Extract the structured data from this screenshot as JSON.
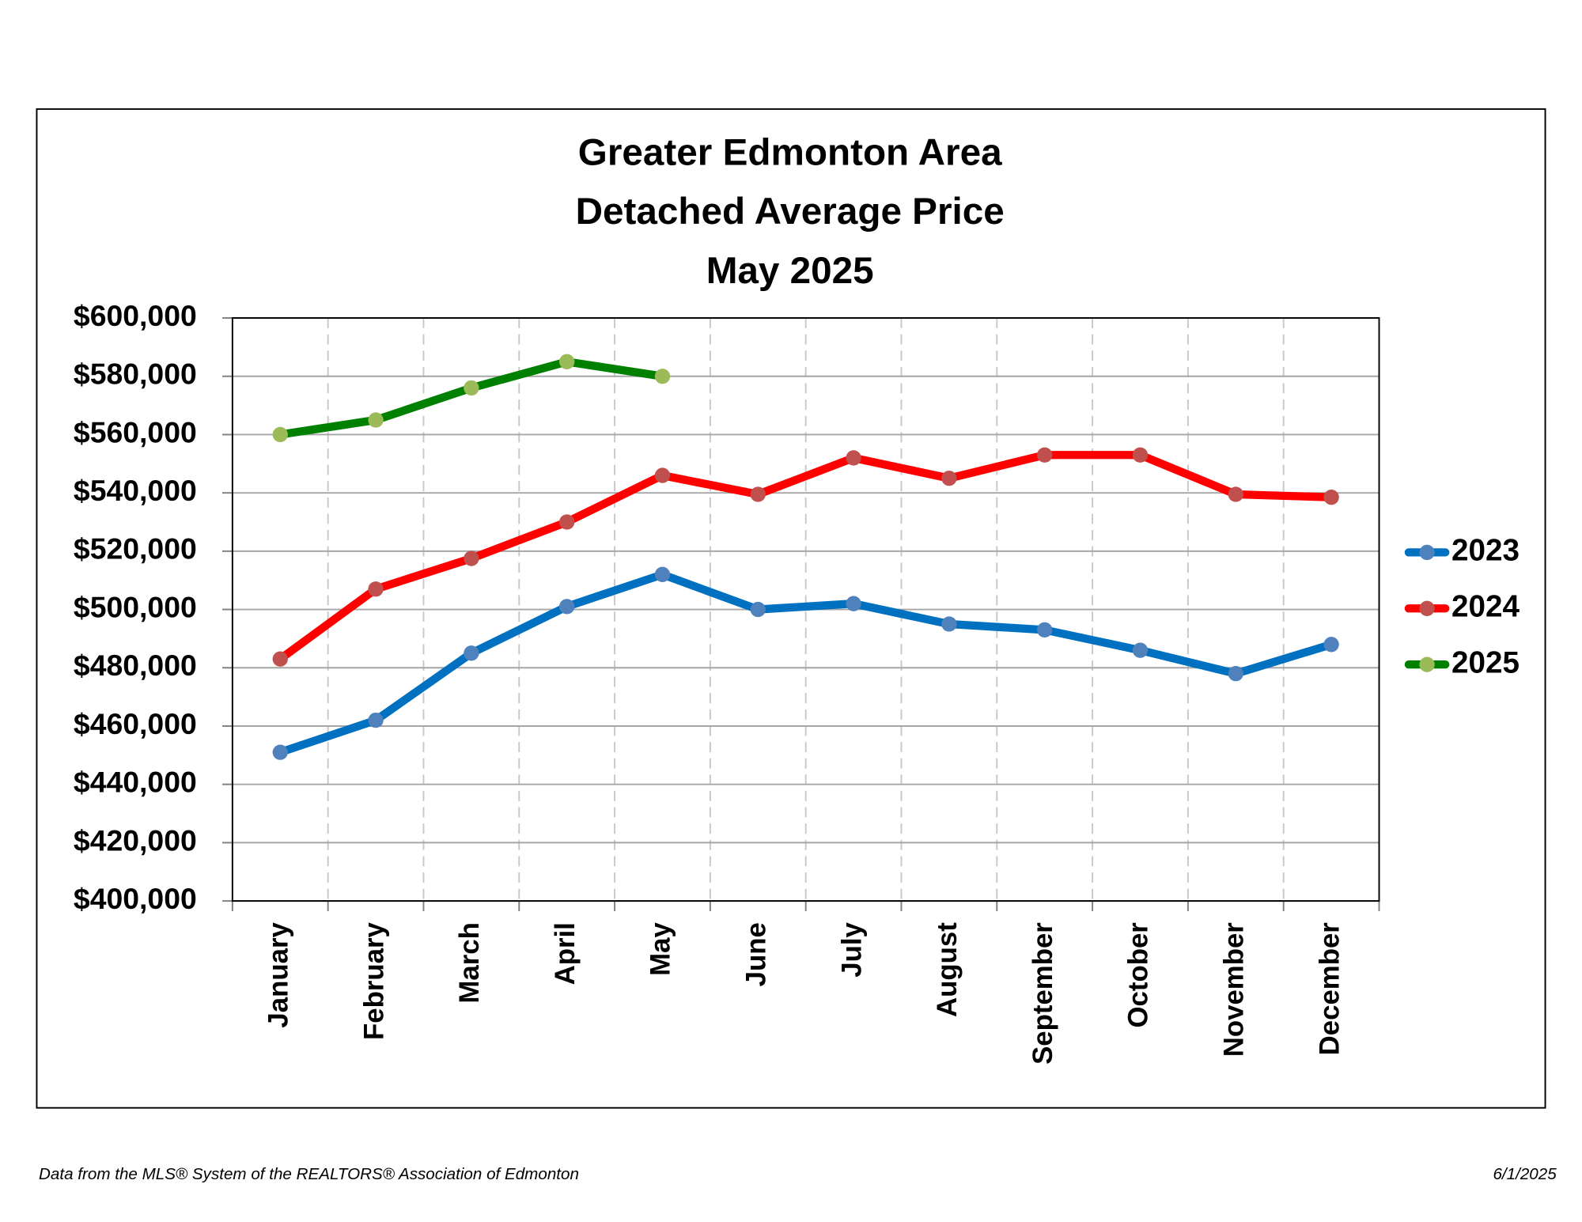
{
  "chart_data": {
    "type": "line",
    "title": [
      "Greater Edmonton Area",
      "Detached Average Price",
      "May 2025"
    ],
    "categories": [
      "January",
      "February",
      "March",
      "April",
      "May",
      "June",
      "July",
      "August",
      "September",
      "October",
      "November",
      "December"
    ],
    "series": [
      {
        "name": "2023",
        "color": "#0070c0",
        "marker_color": "#4f81bd",
        "values": [
          451000,
          462000,
          485000,
          501000,
          512000,
          500000,
          502000,
          495000,
          493000,
          486000,
          478000,
          488000
        ]
      },
      {
        "name": "2024",
        "color": "#ff0000",
        "marker_color": "#c0504d",
        "values": [
          483000,
          507000,
          517500,
          530000,
          546000,
          539500,
          552000,
          545000,
          553000,
          553000,
          539500,
          538500
        ]
      },
      {
        "name": "2025",
        "color": "#008000",
        "marker_color": "#9bbb59",
        "values": [
          560000,
          565000,
          576000,
          585000,
          580000,
          null,
          null,
          null,
          null,
          null,
          null,
          null
        ]
      }
    ],
    "ylim": [
      400000,
      600000
    ],
    "yticks": [
      {
        "value": 400000,
        "label": "$400,000"
      },
      {
        "value": 420000,
        "label": "$420,000"
      },
      {
        "value": 440000,
        "label": "$440,000"
      },
      {
        "value": 460000,
        "label": "$460,000"
      },
      {
        "value": 480000,
        "label": "$480,000"
      },
      {
        "value": 500000,
        "label": "$500,000"
      },
      {
        "value": 520000,
        "label": "$520,000"
      },
      {
        "value": 540000,
        "label": "$540,000"
      },
      {
        "value": 560000,
        "label": "$560,000"
      },
      {
        "value": 580000,
        "label": "$580,000"
      },
      {
        "value": 600000,
        "label": "$600,000"
      }
    ],
    "grid": true,
    "legend": "right",
    "footer": {
      "source": "Data from the MLS® System of the REALTORS® Association of Edmonton",
      "date": "6/1/2025"
    }
  }
}
